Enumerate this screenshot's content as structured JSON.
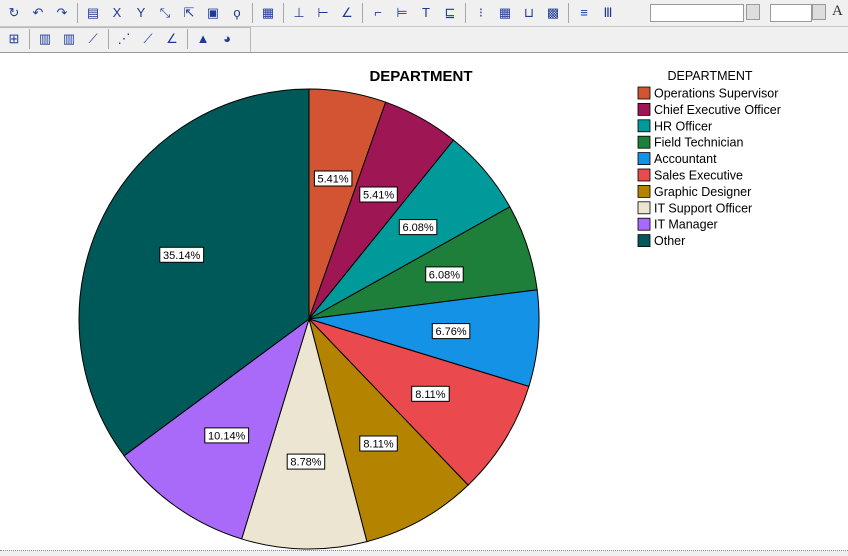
{
  "toolbar_row1": [
    {
      "name": "refresh-icon",
      "glyph": "↻"
    },
    {
      "name": "undo-icon",
      "glyph": "↶"
    },
    {
      "name": "redo-icon",
      "glyph": "↷"
    },
    {
      "name": "sep"
    },
    {
      "name": "properties-icon",
      "glyph": "▤"
    },
    {
      "name": "x-axis-icon",
      "glyph": "X"
    },
    {
      "name": "y-axis-icon",
      "glyph": "Y"
    },
    {
      "name": "rescale-icon",
      "glyph": "⤡"
    },
    {
      "name": "transpose-icon",
      "glyph": "⇱"
    },
    {
      "name": "data-label-icon",
      "glyph": "▣"
    },
    {
      "name": "lasso-icon",
      "glyph": "ϙ"
    },
    {
      "name": "sep"
    },
    {
      "name": "frame-icon",
      "glyph": "▦"
    },
    {
      "name": "sep"
    },
    {
      "name": "reference-line-y-icon",
      "glyph": "⊥"
    },
    {
      "name": "reference-line-x-icon",
      "glyph": "⊢"
    },
    {
      "name": "fit-line-icon",
      "glyph": "∠"
    },
    {
      "name": "sep"
    },
    {
      "name": "title-icon",
      "glyph": "⌐"
    },
    {
      "name": "footnote-icon",
      "glyph": "⊨"
    },
    {
      "name": "text-box-icon",
      "glyph": "T"
    },
    {
      "name": "legend-icon",
      "glyph": "⊑"
    },
    {
      "name": "sep"
    },
    {
      "name": "grid-icon",
      "glyph": "⁝"
    },
    {
      "name": "table-icon",
      "glyph": "▦"
    },
    {
      "name": "axis-icon",
      "glyph": "⊔"
    },
    {
      "name": "color-legend-icon",
      "glyph": "▩"
    },
    {
      "name": "sep"
    },
    {
      "name": "align-icon",
      "glyph": "≡"
    },
    {
      "name": "bars-icon",
      "glyph": "Ⅲ"
    }
  ],
  "toolbar_row2": [
    {
      "name": "chart-frame-icon",
      "glyph": "⊞"
    },
    {
      "name": "sep"
    },
    {
      "name": "bar-chart-icon",
      "glyph": "▥"
    },
    {
      "name": "clustered-bar-icon",
      "glyph": "▥"
    },
    {
      "name": "line-chart-icon",
      "glyph": "⟋"
    },
    {
      "name": "sep"
    },
    {
      "name": "scatter-icon",
      "glyph": "⋰"
    },
    {
      "name": "scatter-fit-icon",
      "glyph": "⟋"
    },
    {
      "name": "area-icon",
      "glyph": "∠"
    },
    {
      "name": "sep"
    },
    {
      "name": "histogram-icon",
      "glyph": "▲"
    },
    {
      "name": "pie-chart-icon",
      "glyph": "◕"
    }
  ],
  "font_size_icon": "A",
  "colors": {
    "Operations Supervisor": "#d35433",
    "Chief Executive Officer": "#9e1654",
    "HR Officer": "#009a9a",
    "Field Technician": "#1d7f3a",
    "Accountant": "#1493e6",
    "Sales Executive": "#ea4a4e",
    "Graphic Designer": "#b48300",
    "IT Support Officer": "#ece5d1",
    "IT Manager": "#a969f9",
    "Other": "#005959"
  },
  "chart_data": {
    "type": "pie",
    "title": "DEPARTMENT",
    "legend_title": "DEPARTMENT",
    "legend_position": "top-right",
    "categories": [
      "Operations Supervisor",
      "Chief Executive Officer",
      "HR Officer",
      "Field Technician",
      "Accountant",
      "Sales Executive",
      "Graphic Designer",
      "IT Support Officer",
      "IT Manager",
      "Other"
    ],
    "values": [
      5.41,
      5.41,
      6.08,
      6.08,
      6.76,
      8.11,
      8.11,
      8.78,
      10.14,
      35.14
    ],
    "labels": [
      "5.41%",
      "5.41%",
      "6.08%",
      "6.08%",
      "6.76%",
      "8.11%",
      "8.11%",
      "8.78%",
      "10.14%",
      "35.14%"
    ],
    "start_angle": "12 o'clock",
    "direction": "clockwise"
  }
}
